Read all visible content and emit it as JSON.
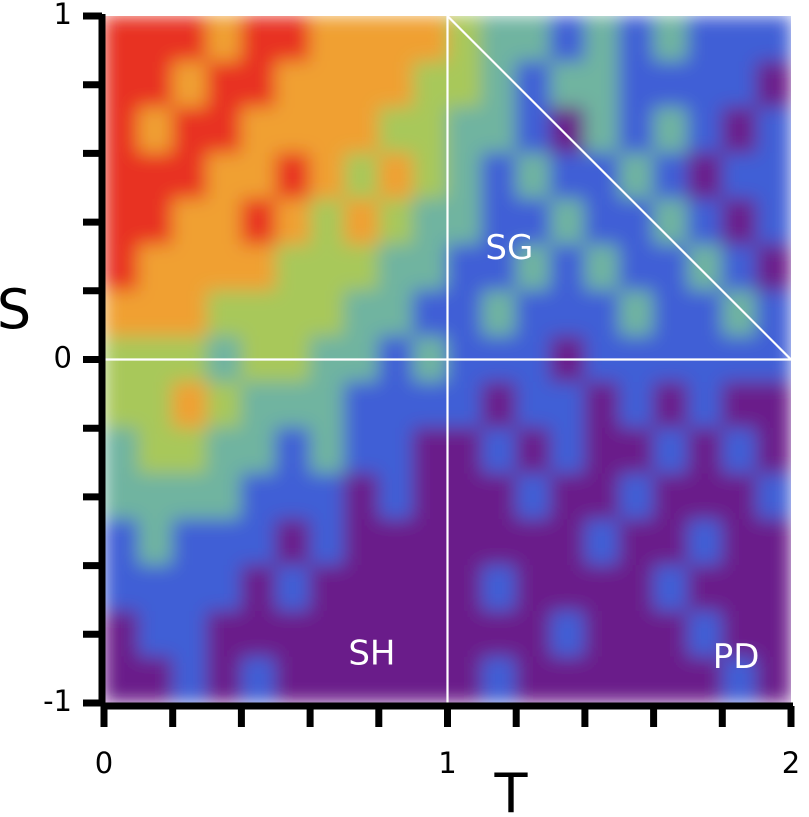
{
  "chart_data": {
    "type": "heatmap",
    "title": "",
    "xlabel": "T",
    "ylabel": "S",
    "xlim": [
      0,
      2
    ],
    "ylim": [
      -1,
      1
    ],
    "x_tick_labels": [
      {
        "value": 0,
        "label": "0"
      },
      {
        "value": 1,
        "label": "1"
      },
      {
        "value": 2,
        "label": "2"
      }
    ],
    "y_tick_labels": [
      {
        "value": 1,
        "label": "1"
      },
      {
        "value": 0,
        "label": "0"
      },
      {
        "value": -1,
        "label": "-1"
      }
    ],
    "x_minor_tick_step": 0.2,
    "y_minor_tick_step": 0.2,
    "colormap": [
      "#6a1f8a",
      "#3f5fd6",
      "#6fb4a0",
      "#a8c85a",
      "#f0a030",
      "#e83020"
    ],
    "grid_values": [
      [
        5,
        5,
        5,
        4,
        5,
        5,
        4,
        4,
        4,
        4,
        3,
        2,
        2,
        1,
        2,
        1,
        2,
        1,
        1,
        1
      ],
      [
        5,
        5,
        4,
        5,
        5,
        4,
        4,
        4,
        4,
        3,
        3,
        2,
        1,
        2,
        2,
        1,
        1,
        1,
        1,
        0
      ],
      [
        5,
        4,
        5,
        5,
        4,
        4,
        4,
        4,
        3,
        3,
        2,
        2,
        1,
        0,
        2,
        1,
        2,
        1,
        0,
        1
      ],
      [
        5,
        5,
        5,
        4,
        4,
        5,
        4,
        3,
        4,
        3,
        2,
        1,
        2,
        1,
        1,
        2,
        1,
        0,
        1,
        1
      ],
      [
        5,
        5,
        4,
        4,
        5,
        4,
        3,
        4,
        3,
        2,
        2,
        1,
        1,
        2,
        1,
        1,
        2,
        1,
        0,
        1
      ],
      [
        5,
        4,
        4,
        4,
        4,
        3,
        3,
        3,
        2,
        2,
        1,
        1,
        2,
        1,
        2,
        1,
        1,
        2,
        1,
        0
      ],
      [
        4,
        4,
        4,
        3,
        3,
        3,
        3,
        2,
        2,
        1,
        1,
        2,
        1,
        1,
        1,
        2,
        1,
        1,
        2,
        1
      ],
      [
        3,
        3,
        3,
        2,
        3,
        3,
        2,
        2,
        1,
        2,
        1,
        1,
        1,
        0,
        1,
        1,
        1,
        1,
        1,
        1
      ],
      [
        3,
        3,
        4,
        3,
        2,
        2,
        2,
        1,
        1,
        1,
        1,
        0,
        1,
        1,
        0,
        1,
        0,
        1,
        0,
        0
      ],
      [
        2,
        3,
        3,
        2,
        2,
        1,
        2,
        1,
        1,
        0,
        0,
        1,
        0,
        1,
        0,
        0,
        1,
        0,
        1,
        0
      ],
      [
        2,
        2,
        2,
        2,
        1,
        1,
        1,
        0,
        1,
        0,
        0,
        0,
        1,
        0,
        0,
        1,
        0,
        0,
        0,
        1
      ],
      [
        1,
        2,
        1,
        1,
        1,
        0,
        1,
        0,
        0,
        0,
        0,
        0,
        0,
        0,
        1,
        0,
        0,
        1,
        0,
        0
      ],
      [
        1,
        1,
        1,
        1,
        0,
        1,
        0,
        0,
        0,
        0,
        0,
        1,
        0,
        0,
        0,
        0,
        1,
        0,
        0,
        0
      ],
      [
        0,
        1,
        1,
        0,
        0,
        0,
        0,
        0,
        0,
        0,
        0,
        0,
        0,
        1,
        0,
        0,
        0,
        1,
        0,
        0
      ],
      [
        0,
        0,
        1,
        0,
        1,
        0,
        0,
        0,
        0,
        0,
        0,
        1,
        0,
        0,
        0,
        0,
        0,
        0,
        1,
        0
      ]
    ],
    "lines": [
      {
        "from": [
          1,
          -1
        ],
        "to": [
          1,
          1
        ],
        "color": "#ffffff"
      },
      {
        "from": [
          0,
          0
        ],
        "to": [
          2,
          0
        ],
        "color": "#ffffff"
      },
      {
        "from": [
          1,
          1
        ],
        "to": [
          2,
          0
        ],
        "color": "#ffffff"
      }
    ],
    "region_labels": [
      {
        "text": "SG",
        "x": 1.18,
        "y": 0.32
      },
      {
        "text": "SH",
        "x": 0.78,
        "y": -0.86
      },
      {
        "text": "PD",
        "x": 1.84,
        "y": -0.87
      }
    ]
  }
}
